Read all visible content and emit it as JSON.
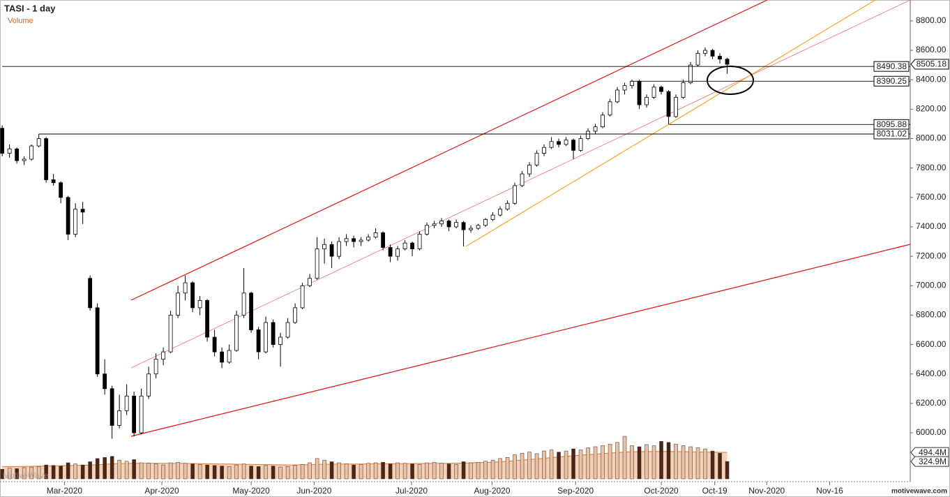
{
  "chart_data": {
    "type": "candlestick",
    "title": "TASI - 1 day",
    "volume_title": "Volume",
    "watermark": "MotiveWave",
    "site": "motivewave.com",
    "up_color": "#ffffff",
    "down_color": "#000000",
    "candles": [
      [
        8070,
        8090,
        7880,
        7900
      ],
      [
        7900,
        7960,
        7870,
        7930
      ],
      [
        7930,
        7940,
        7830,
        7850
      ],
      [
        7850,
        7880,
        7820,
        7860
      ],
      [
        7860,
        7960,
        7850,
        7950
      ],
      [
        7950,
        8031.02,
        7940,
        8000
      ],
      [
        8000,
        8010,
        7700,
        7720
      ],
      [
        7720,
        7760,
        7680,
        7700
      ],
      [
        7700,
        7710,
        7560,
        7600
      ],
      [
        7600,
        7610,
        7310,
        7350
      ],
      [
        7350,
        7560,
        7330,
        7520
      ],
      [
        7520,
        7570,
        7420,
        7500
      ],
      [
        7050,
        7070,
        6830,
        6850
      ],
      [
        6850,
        6880,
        6380,
        6400
      ],
      [
        6400,
        6500,
        6260,
        6300
      ],
      [
        6300,
        6320,
        5960,
        6050
      ],
      [
        6050,
        6260,
        6030,
        6150
      ],
      [
        6150,
        6330,
        6120,
        6250
      ],
      [
        6250,
        6280,
        5976,
        6000
      ],
      [
        6000,
        6300,
        5990,
        6250
      ],
      [
        6250,
        6450,
        6230,
        6400
      ],
      [
        6400,
        6540,
        6370,
        6500
      ],
      [
        6500,
        6580,
        6460,
        6550
      ],
      [
        6550,
        6830,
        6540,
        6800
      ],
      [
        6800,
        7000,
        6780,
        6950
      ],
      [
        6950,
        7070,
        6900,
        7020
      ],
      [
        7020,
        7030,
        6820,
        6850
      ],
      [
        6850,
        6930,
        6800,
        6900
      ],
      [
        6900,
        6910,
        6620,
        6650
      ],
      [
        6650,
        6700,
        6520,
        6550
      ],
      [
        6550,
        6580,
        6440,
        6480
      ],
      [
        6480,
        6600,
        6470,
        6560
      ],
      [
        6560,
        6830,
        6550,
        6800
      ],
      [
        6800,
        7120,
        6780,
        6950
      ],
      [
        6950,
        6960,
        6680,
        6700
      ],
      [
        6700,
        6720,
        6500,
        6550
      ],
      [
        6550,
        6790,
        6540,
        6750
      ],
      [
        6750,
        6770,
        6580,
        6600
      ],
      [
        6600,
        6680,
        6450,
        6650
      ],
      [
        6650,
        6780,
        6640,
        6750
      ],
      [
        6750,
        6880,
        6740,
        6850
      ],
      [
        6850,
        7020,
        6840,
        7000
      ],
      [
        7000,
        7080,
        6990,
        7050
      ],
      [
        7050,
        7330,
        7040,
        7250
      ],
      [
        7250,
        7320,
        7150,
        7280
      ],
      [
        7280,
        7300,
        7120,
        7200
      ],
      [
        7200,
        7330,
        7180,
        7300
      ],
      [
        7300,
        7350,
        7270,
        7320
      ],
      [
        7320,
        7340,
        7260,
        7300
      ],
      [
        7300,
        7330,
        7270,
        7310
      ],
      [
        7310,
        7350,
        7300,
        7330
      ],
      [
        7330,
        7390,
        7320,
        7360
      ],
      [
        7360,
        7370,
        7240,
        7260
      ],
      [
        7260,
        7280,
        7160,
        7200
      ],
      [
        7200,
        7270,
        7170,
        7250
      ],
      [
        7250,
        7310,
        7240,
        7290
      ],
      [
        7290,
        7300,
        7200,
        7250
      ],
      [
        7250,
        7370,
        7240,
        7350
      ],
      [
        7350,
        7430,
        7340,
        7410
      ],
      [
        7410,
        7440,
        7390,
        7420
      ],
      [
        7420,
        7460,
        7400,
        7440
      ],
      [
        7440,
        7450,
        7370,
        7400
      ],
      [
        7400,
        7450,
        7390,
        7430
      ],
      [
        7430,
        7440,
        7267,
        7380
      ],
      [
        7380,
        7410,
        7360,
        7390
      ],
      [
        7390,
        7420,
        7380,
        7410
      ],
      [
        7410,
        7460,
        7400,
        7450
      ],
      [
        7450,
        7500,
        7440,
        7480
      ],
      [
        7480,
        7540,
        7470,
        7520
      ],
      [
        7520,
        7580,
        7510,
        7560
      ],
      [
        7560,
        7700,
        7550,
        7680
      ],
      [
        7680,
        7780,
        7670,
        7760
      ],
      [
        7760,
        7840,
        7740,
        7820
      ],
      [
        7820,
        7920,
        7810,
        7900
      ],
      [
        7900,
        7960,
        7880,
        7940
      ],
      [
        7940,
        8010,
        7930,
        7980
      ],
      [
        7980,
        8000,
        7940,
        7960
      ],
      [
        7960,
        8010,
        7950,
        7990
      ],
      [
        7990,
        8000,
        7860,
        7920
      ],
      [
        7920,
        8020,
        7910,
        8000
      ],
      [
        8000,
        8070,
        7990,
        8050
      ],
      [
        8050,
        8100,
        8030,
        8080
      ],
      [
        8080,
        8180,
        8070,
        8160
      ],
      [
        8160,
        8270,
        8150,
        8250
      ],
      [
        8250,
        8350,
        8240,
        8330
      ],
      [
        8330,
        8380,
        8300,
        8360
      ],
      [
        8360,
        8400,
        8340,
        8390
      ],
      [
        8390,
        8400,
        8200,
        8230
      ],
      [
        8230,
        8300,
        8210,
        8280
      ],
      [
        8280,
        8370,
        8270,
        8350
      ],
      [
        8350,
        8360,
        8300,
        8320
      ],
      [
        8320,
        8330,
        8095.88,
        8150
      ],
      [
        8150,
        8300,
        8140,
        8280
      ],
      [
        8280,
        8400,
        8270,
        8380
      ],
      [
        8380,
        8520,
        8370,
        8500
      ],
      [
        8500,
        8600,
        8490,
        8580
      ],
      [
        8580,
        8620,
        8560,
        8600
      ],
      [
        8600,
        8610,
        8540,
        8560
      ],
      [
        8560,
        8580,
        8510,
        8540
      ],
      [
        8540,
        8550,
        8440,
        8505.18
      ]
    ],
    "volume": {
      "up_color": "#e9c2a3",
      "down_color": "#4a2616",
      "ma_color": "#e07b39",
      "values": [
        180,
        200,
        190,
        210,
        220,
        230,
        260,
        250,
        240,
        300,
        280,
        260,
        320,
        380,
        400,
        420,
        350,
        330,
        360,
        300,
        290,
        280,
        260,
        300,
        310,
        290,
        280,
        270,
        260,
        250,
        240,
        230,
        260,
        280,
        240,
        230,
        250,
        240,
        220,
        230,
        250,
        270,
        300,
        380,
        350,
        320,
        300,
        280,
        260,
        270,
        290,
        300,
        310,
        280,
        300,
        290,
        280,
        270,
        300,
        310,
        290,
        280,
        270,
        320,
        300,
        310,
        330,
        350,
        380,
        400,
        450,
        480,
        500,
        470,
        520,
        540,
        500,
        520,
        560,
        540,
        580,
        600,
        620,
        650,
        680,
        795,
        620,
        600,
        640,
        620,
        700,
        680,
        650,
        620,
        600,
        580,
        560,
        520,
        480,
        324.9
      ],
      "ma": [
        230,
        230,
        230,
        232,
        235,
        238,
        240,
        242,
        245,
        248,
        250,
        252,
        258,
        265,
        272,
        280,
        285,
        288,
        290,
        292,
        292,
        290,
        290,
        290,
        290,
        288,
        286,
        284,
        282,
        280,
        278,
        276,
        274,
        272,
        270,
        268,
        266,
        264,
        262,
        260,
        260,
        262,
        265,
        270,
        272,
        274,
        275,
        276,
        277,
        278,
        280,
        281,
        282,
        283,
        284,
        285,
        286,
        287,
        288,
        289,
        290,
        291,
        292,
        295,
        298,
        302,
        306,
        312,
        320,
        330,
        340,
        350,
        362,
        372,
        385,
        398,
        410,
        420,
        432,
        442,
        452,
        462,
        472,
        482,
        490,
        500,
        505,
        508,
        510,
        512,
        512,
        512,
        510,
        508,
        505,
        502,
        500,
        498,
        496,
        494.4
      ],
      "last_value_label": "324.9M",
      "last_ma_label": "494.4M",
      "ylim": [
        0,
        1000
      ]
    },
    "levels": [
      {
        "value": 8490.38,
        "start": 0
      },
      {
        "value": 8390.25,
        "start": 85.9
      },
      {
        "value": 8095.88,
        "start": 91.1
      },
      {
        "value": 8031.02,
        "start": 5
      }
    ],
    "xlim": [
      -0.3,
      124
    ],
    "xticks": [
      {
        "value": 8.5,
        "label": "Mar-2020"
      },
      {
        "value": 21.8,
        "label": "Apr-2020"
      },
      {
        "value": 34,
        "label": "May-2020"
      },
      {
        "value": 42.6,
        "label": "Jun-2020"
      },
      {
        "value": 55.9,
        "label": "Jul-2020"
      },
      {
        "value": 66.9,
        "label": "Aug-2020"
      },
      {
        "value": 78.3,
        "label": "Sep-2020"
      },
      {
        "value": 90,
        "label": "Oct-2020"
      },
      {
        "value": 97.3,
        "label": "Oct-19"
      },
      {
        "value": 104.4,
        "label": "Nov-2020"
      },
      {
        "value": 113,
        "label": "Nov-16"
      }
    ],
    "ylim": [
      5668,
      8942
    ],
    "yticks": [
      {
        "value": 6000,
        "label": "6000.00"
      },
      {
        "value": 6200,
        "label": "6200.00"
      },
      {
        "value": 6400,
        "label": "6400.00"
      },
      {
        "value": 6600,
        "label": "6600.00"
      },
      {
        "value": 6800,
        "label": "6800.00"
      },
      {
        "value": 7000,
        "label": "7000.00"
      },
      {
        "value": 7200,
        "label": "7200.00"
      },
      {
        "value": 7400,
        "label": "7400.00"
      },
      {
        "value": 7600,
        "label": "7600.00"
      },
      {
        "value": 7800,
        "label": "7800.00"
      },
      {
        "value": 8000,
        "label": "8000.00"
      },
      {
        "value": 8200,
        "label": "8200.00"
      },
      {
        "value": 8400,
        "label": "8400.00"
      },
      {
        "value": 8600,
        "label": "8600.00"
      },
      {
        "value": 8800,
        "label": "8800.00"
      }
    ]
  }
}
